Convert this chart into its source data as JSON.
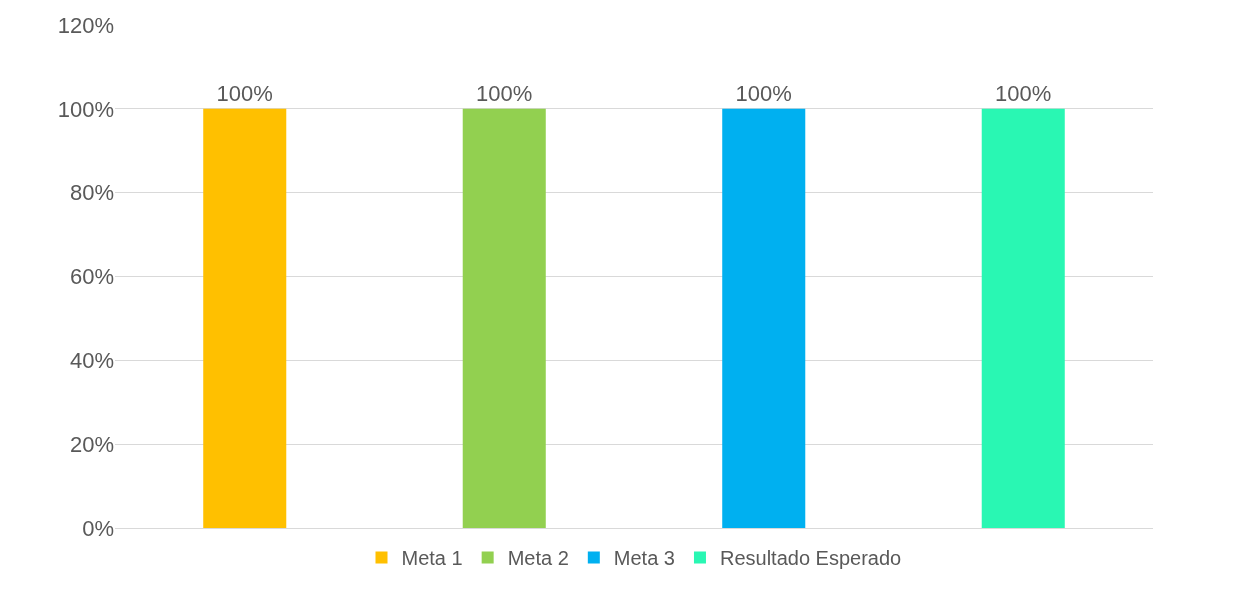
{
  "chart_data": {
    "type": "bar",
    "categories": [
      null
    ],
    "series": [
      {
        "name": "Meta 1",
        "color": "#ffc000",
        "values": [
          100
        ],
        "value_labels": [
          "100%"
        ]
      },
      {
        "name": "Meta 2",
        "color": "#92d050",
        "values": [
          100
        ],
        "value_labels": [
          "100%"
        ]
      },
      {
        "name": "Meta 3",
        "color": "#00b0f0",
        "values": [
          100
        ],
        "value_labels": [
          "100%"
        ]
      },
      {
        "name": "Resultado Esperado",
        "color": "#29f7b3",
        "values": [
          100
        ],
        "value_labels": [
          "100%"
        ]
      }
    ],
    "ylim": [
      0,
      120
    ],
    "yticks": [
      {
        "value": 0,
        "label": "0%"
      },
      {
        "value": 20,
        "label": "20%"
      },
      {
        "value": 40,
        "label": "40%"
      },
      {
        "value": 60,
        "label": "60%"
      },
      {
        "value": 80,
        "label": "80%"
      },
      {
        "value": 100,
        "label": "100%"
      },
      {
        "value": 120,
        "label": "120%"
      }
    ],
    "grid": "y",
    "legend": "bottom"
  }
}
